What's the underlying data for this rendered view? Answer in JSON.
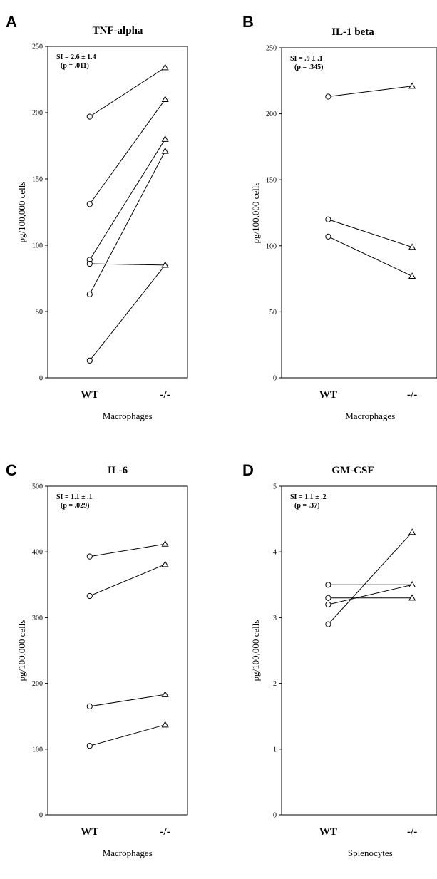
{
  "chart_data": [
    {
      "type": "line",
      "panel": "A",
      "title": "TNF-alpha",
      "ylabel": "pg/100,000 cells",
      "xlabel": "Macrophages",
      "categories": [
        "WT",
        "-/-"
      ],
      "ylim": [
        0,
        250
      ],
      "yticks": [
        0,
        50,
        100,
        150,
        200,
        250
      ],
      "annotation": [
        "SI = 2.6 ± 1.4",
        "(p = .011)"
      ],
      "pairs": [
        [
          197,
          234
        ],
        [
          131,
          210
        ],
        [
          89,
          180
        ],
        [
          63,
          171
        ],
        [
          86,
          85
        ],
        [
          13,
          85
        ]
      ]
    },
    {
      "type": "line",
      "panel": "B",
      "title": "IL-1 beta",
      "ylabel": "pg/100,000 cells",
      "xlabel": "Macrophages",
      "categories": [
        "WT",
        "-/-"
      ],
      "ylim": [
        0,
        250
      ],
      "yticks": [
        0,
        50,
        100,
        150,
        200,
        250
      ],
      "annotation": [
        "SI = .9 ± .1",
        "(p = .345)"
      ],
      "pairs": [
        [
          213,
          221
        ],
        [
          120,
          99
        ],
        [
          107,
          77
        ]
      ]
    },
    {
      "type": "line",
      "panel": "C",
      "title": "IL-6",
      "ylabel": "pg/100,000 cells",
      "xlabel": "Macrophages",
      "categories": [
        "WT",
        "-/-"
      ],
      "ylim": [
        0,
        500
      ],
      "yticks": [
        0,
        100,
        200,
        300,
        400,
        500
      ],
      "annotation": [
        "SI = 1.1 ± .1",
        "(p = .029)"
      ],
      "pairs": [
        [
          393,
          412
        ],
        [
          333,
          381
        ],
        [
          165,
          183
        ],
        [
          105,
          137
        ]
      ]
    },
    {
      "type": "line",
      "panel": "D",
      "title": "GM-CSF",
      "ylabel": "pg/100,000 cells",
      "xlabel": "Splenocytes",
      "categories": [
        "WT",
        "-/-"
      ],
      "ylim": [
        0,
        5
      ],
      "yticks": [
        0,
        1,
        2,
        3,
        4,
        5
      ],
      "annotation": [
        "SI = 1.1 ± .2",
        "(p = .37)"
      ],
      "pairs": [
        [
          3.5,
          3.5
        ],
        [
          3.3,
          3.3
        ],
        [
          3.2,
          3.5
        ],
        [
          2.9,
          4.3
        ]
      ]
    }
  ]
}
